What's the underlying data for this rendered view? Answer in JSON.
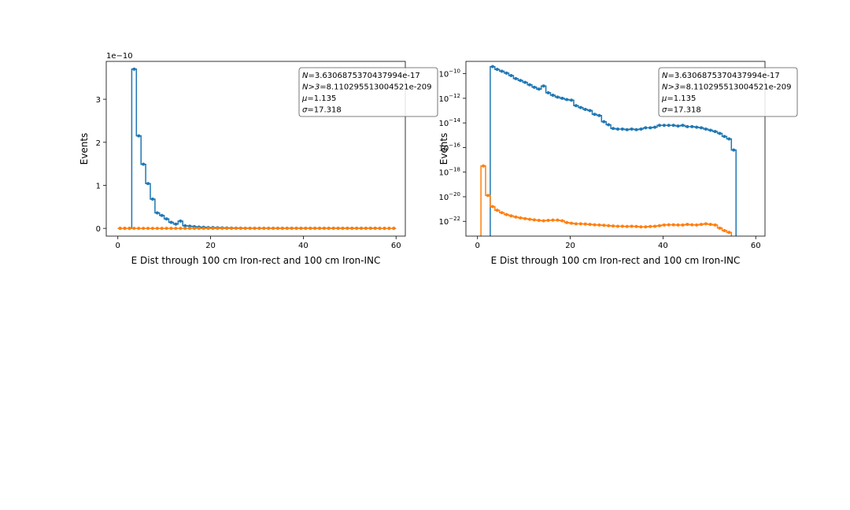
{
  "chart_data": [
    {
      "type": "line",
      "drawstyle": "steps-mid",
      "scale": "linear",
      "xlabel": "E Dist through 100 cm Iron-rect and 100 cm Iron-INC",
      "ylabel": "Events",
      "offset_text": "1e−10",
      "xlim": [
        -2.5,
        62
      ],
      "ylim": [
        -0.18,
        3.88
      ],
      "x_ticks": [
        0,
        20,
        40,
        60
      ],
      "x_tick_labels": [
        "0",
        "20",
        "40",
        "60"
      ],
      "y_ticks": [
        0,
        1,
        2,
        3
      ],
      "y_tick_labels": [
        "0",
        "1",
        "2",
        "3"
      ],
      "x": [
        0.5,
        1.5,
        2.5,
        3.5,
        4.5,
        5.5,
        6.5,
        7.5,
        8.5,
        9.5,
        10.5,
        11.5,
        12.5,
        13.5,
        14.5,
        15.5,
        16.5,
        17.5,
        18.5,
        19.5,
        20.5,
        21.5,
        22.5,
        23.5,
        24.5,
        25.5,
        26.5,
        27.5,
        28.5,
        29.5,
        30.5,
        31.5,
        32.5,
        33.5,
        34.5,
        35.5,
        36.5,
        37.5,
        38.5,
        39.5,
        40.5,
        41.5,
        42.5,
        43.5,
        44.5,
        45.5,
        46.5,
        47.5,
        48.5,
        49.5,
        50.5,
        51.5,
        52.5,
        53.5,
        54.5,
        55.5,
        56.5,
        57.5,
        58.5,
        59.5
      ],
      "series": [
        {
          "name": "series-blue",
          "color": "#1f77b4",
          "values": [
            0,
            0,
            0,
            3.7,
            2.15,
            1.49,
            1.04,
            0.68,
            0.36,
            0.3,
            0.22,
            0.14,
            0.1,
            0.17,
            0.06,
            0.05,
            0.04,
            0.03,
            0.025,
            0.02,
            0.018,
            0.015,
            0.012,
            0.01,
            0.008,
            0.006,
            0.005,
            0.004,
            0.003,
            0.003,
            0.002,
            0.002,
            0.002,
            0.002,
            0.002,
            0.002,
            0.002,
            0.002,
            0.002,
            0.002,
            0.002,
            0.002,
            0.002,
            0.002,
            0.002,
            0.002,
            0.002,
            0.002,
            0.002,
            0.002,
            0.002,
            0.002,
            0.002,
            0.002,
            0.002,
            0.002,
            0,
            0,
            0,
            0
          ]
        },
        {
          "name": "series-orange",
          "color": "#ff7f0e",
          "values": [
            0,
            0,
            0,
            0,
            0,
            0,
            0,
            0,
            0,
            0,
            0,
            0,
            0,
            0,
            0,
            0,
            0,
            0,
            0,
            0,
            0,
            0,
            0,
            0,
            0,
            0,
            0,
            0,
            0,
            0,
            0,
            0,
            0,
            0,
            0,
            0,
            0,
            0,
            0,
            0,
            0,
            0,
            0,
            0,
            0,
            0,
            0,
            0,
            0,
            0,
            0,
            0,
            0,
            0,
            0,
            0,
            0,
            0,
            0,
            0
          ]
        }
      ],
      "legend_lines": [
        [
          "N",
          "=3.6306875370437994e-17"
        ],
        [
          "N>3",
          "=8.110295513004521e-209"
        ],
        [
          "μ",
          "=1.135"
        ],
        [
          "σ",
          "=17.318"
        ]
      ]
    },
    {
      "type": "line",
      "drawstyle": "steps-mid",
      "scale": "log",
      "xlabel": "E Dist through 100 cm Iron-rect and 100 cm Iron-INC",
      "ylabel": "Events",
      "xlim": [
        -2.5,
        62
      ],
      "ylim_log10": [
        -23.2,
        -9.0
      ],
      "x_ticks": [
        0,
        20,
        40,
        60
      ],
      "x_tick_labels": [
        "0",
        "20",
        "40",
        "60"
      ],
      "y_tick_exponents": [
        -10,
        -12,
        -14,
        -16,
        -18,
        -20,
        -22
      ],
      "y_tick_base": "10",
      "x": [
        1.25,
        2.25,
        3.25,
        4.25,
        5.25,
        6.25,
        7.25,
        8.25,
        9.25,
        10.25,
        11.25,
        12.25,
        13.25,
        14.25,
        15.25,
        16.25,
        17.25,
        18.25,
        19.25,
        20.25,
        21.25,
        22.25,
        23.25,
        24.25,
        25.25,
        26.25,
        27.25,
        28.25,
        29.25,
        30.25,
        31.25,
        32.25,
        33.25,
        34.25,
        35.25,
        36.25,
        37.25,
        38.25,
        39.25,
        40.25,
        41.25,
        42.25,
        43.25,
        44.25,
        45.25,
        46.25,
        47.25,
        48.25,
        49.25,
        50.25,
        51.25,
        52.25,
        53.25,
        54.25,
        55.25
      ],
      "series": [
        {
          "name": "series-blue",
          "color": "#1f77b4",
          "log10_values": [
            null,
            null,
            -9.42,
            -9.65,
            -9.8,
            -9.95,
            -10.15,
            -10.4,
            -10.55,
            -10.7,
            -10.9,
            -11.1,
            -11.25,
            -11.0,
            -11.55,
            -11.75,
            -11.9,
            -12.0,
            -12.1,
            -12.15,
            -12.6,
            -12.75,
            -12.9,
            -13.0,
            -13.3,
            -13.4,
            -13.9,
            -14.15,
            -14.45,
            -14.5,
            -14.5,
            -14.55,
            -14.5,
            -14.55,
            -14.5,
            -14.4,
            -14.4,
            -14.35,
            -14.2,
            -14.2,
            -14.2,
            -14.2,
            -14.25,
            -14.2,
            -14.3,
            -14.3,
            -14.35,
            -14.4,
            -14.5,
            -14.6,
            -14.7,
            -14.85,
            -15.1,
            -15.3,
            -16.2
          ],
          "start_x": 2.75,
          "end_x": 55.75
        },
        {
          "name": "series-orange",
          "color": "#ff7f0e",
          "log10_values": [
            -17.5,
            -19.9,
            -20.8,
            -21.1,
            -21.3,
            -21.45,
            -21.55,
            -21.65,
            -21.72,
            -21.78,
            -21.83,
            -21.88,
            -21.92,
            -21.95,
            -21.92,
            -21.9,
            -21.9,
            -21.95,
            -22.1,
            -22.15,
            -22.2,
            -22.2,
            -22.22,
            -22.25,
            -22.28,
            -22.3,
            -22.32,
            -22.35,
            -22.38,
            -22.4,
            -22.4,
            -22.42,
            -22.4,
            -22.42,
            -22.45,
            -22.45,
            -22.42,
            -22.4,
            -22.35,
            -22.3,
            -22.28,
            -22.28,
            -22.3,
            -22.3,
            -22.25,
            -22.28,
            -22.3,
            -22.25,
            -22.2,
            -22.25,
            -22.3,
            -22.55,
            -22.75,
            -22.9,
            -23.6
          ],
          "start_x": 0.75,
          "end_x": 55.75
        }
      ],
      "legend_lines": [
        [
          "N",
          "=3.6306875370437994e-17"
        ],
        [
          "N>3",
          "=8.110295513004521e-209"
        ],
        [
          "μ",
          "=1.135"
        ],
        [
          "σ",
          "=17.318"
        ]
      ]
    }
  ]
}
